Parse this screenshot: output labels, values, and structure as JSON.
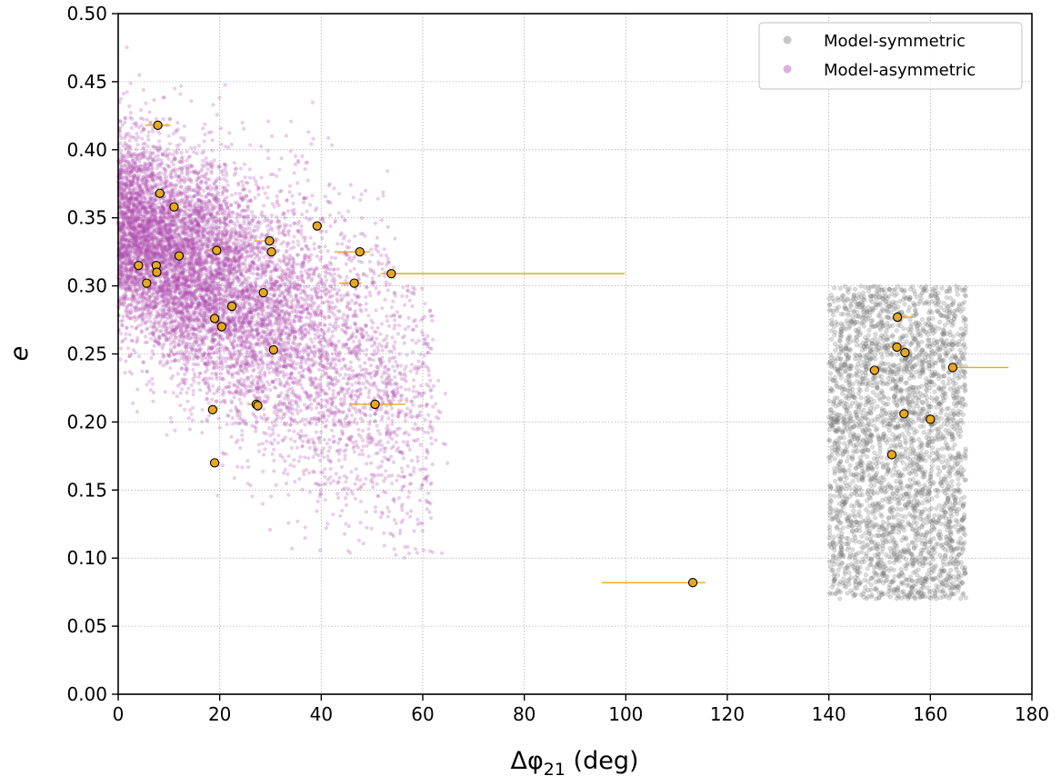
{
  "chart_data": {
    "type": "scatter",
    "xlabel_base": "Δφ",
    "xlabel_sub": "21",
    "xlabel_unit": " (deg)",
    "ylabel": "e",
    "xlim": [
      0,
      180
    ],
    "ylim": [
      0,
      0.5
    ],
    "x_ticks": [
      "0",
      "20",
      "40",
      "60",
      "80",
      "100",
      "120",
      "140",
      "160",
      "180"
    ],
    "y_ticks": [
      "0.00",
      "0.05",
      "0.10",
      "0.15",
      "0.20",
      "0.25",
      "0.30",
      "0.35",
      "0.40",
      "0.45",
      "0.50"
    ],
    "grid": true,
    "legend_position": "top-right",
    "series": [
      {
        "name": "Model-symmetric",
        "color": "#808080",
        "style": "cloud",
        "region": {
          "x": [
            140,
            167
          ],
          "y": [
            0.07,
            0.3
          ]
        },
        "approx_points": 3000
      },
      {
        "name": "Model-asymmetric",
        "color": "#b14fb0",
        "style": "cloud",
        "region": {
          "x": [
            0,
            65
          ],
          "y": [
            0.1,
            0.49
          ]
        },
        "approx_points": 9000
      },
      {
        "name": "",
        "color": "#e8a81e",
        "style": "errorbar",
        "points": [
          {
            "x": 7.8,
            "y": 0.418,
            "xerr": [
              2.5,
              2.5
            ]
          },
          {
            "x": 8.2,
            "y": 0.368,
            "xerr": [
              0,
              0
            ]
          },
          {
            "x": 11.0,
            "y": 0.358,
            "xerr": [
              0,
              0
            ]
          },
          {
            "x": 39.2,
            "y": 0.344,
            "xerr": [
              0,
              0
            ]
          },
          {
            "x": 19.4,
            "y": 0.326,
            "xerr": [
              1.5,
              1.0
            ]
          },
          {
            "x": 29.8,
            "y": 0.333,
            "xerr": [
              3.0,
              1.0
            ]
          },
          {
            "x": 30.2,
            "y": 0.325,
            "xerr": [
              0,
              0
            ]
          },
          {
            "x": 47.6,
            "y": 0.325,
            "xerr": [
              5.0,
              2.0
            ]
          },
          {
            "x": 12.0,
            "y": 0.322,
            "xerr": [
              0,
              0
            ]
          },
          {
            "x": 4.0,
            "y": 0.315,
            "xerr": [
              0,
              0
            ]
          },
          {
            "x": 7.5,
            "y": 0.315,
            "xerr": [
              0,
              0
            ]
          },
          {
            "x": 7.6,
            "y": 0.31,
            "xerr": [
              0,
              0
            ]
          },
          {
            "x": 53.8,
            "y": 0.309,
            "xerr": [
              2.0,
              46.0
            ]
          },
          {
            "x": 5.6,
            "y": 0.302,
            "xerr": [
              0,
              0
            ]
          },
          {
            "x": 46.5,
            "y": 0.302,
            "xerr": [
              3.0,
              1.5
            ]
          },
          {
            "x": 28.6,
            "y": 0.295,
            "xerr": [
              0,
              0
            ]
          },
          {
            "x": 22.4,
            "y": 0.285,
            "xerr": [
              0,
              0
            ]
          },
          {
            "x": 19.0,
            "y": 0.276,
            "xerr": [
              0,
              0
            ]
          },
          {
            "x": 20.4,
            "y": 0.27,
            "xerr": [
              0,
              0
            ]
          },
          {
            "x": 30.6,
            "y": 0.253,
            "xerr": [
              0,
              0
            ]
          },
          {
            "x": 27.2,
            "y": 0.213,
            "xerr": [
              1.5,
              1.0
            ]
          },
          {
            "x": 27.5,
            "y": 0.212,
            "xerr": [
              0,
              0
            ]
          },
          {
            "x": 50.6,
            "y": 0.213,
            "xerr": [
              5.0,
              6.0
            ]
          },
          {
            "x": 18.6,
            "y": 0.209,
            "xerr": [
              0,
              0
            ]
          },
          {
            "x": 19.0,
            "y": 0.17,
            "xerr": [
              0,
              0
            ]
          },
          {
            "x": 113.2,
            "y": 0.082,
            "xerr": [
              18.0,
              2.5
            ]
          },
          {
            "x": 153.5,
            "y": 0.277,
            "xerr": [
              0,
              3.0
            ]
          },
          {
            "x": 153.4,
            "y": 0.255,
            "xerr": [
              1.5,
              1.0
            ]
          },
          {
            "x": 155.0,
            "y": 0.251,
            "xerr": [
              0,
              0
            ]
          },
          {
            "x": 149.0,
            "y": 0.238,
            "xerr": [
              0,
              0
            ]
          },
          {
            "x": 164.4,
            "y": 0.24,
            "xerr": [
              0,
              11.0
            ]
          },
          {
            "x": 154.8,
            "y": 0.206,
            "xerr": [
              0,
              0
            ]
          },
          {
            "x": 160.0,
            "y": 0.202,
            "xerr": [
              0,
              0
            ]
          },
          {
            "x": 152.4,
            "y": 0.176,
            "xerr": [
              0,
              0
            ]
          }
        ]
      }
    ],
    "colors": {
      "axes": "#000000",
      "grid": "#b0b0b0",
      "marker_edge": "#000000",
      "legend_border": "#cccccc"
    }
  }
}
